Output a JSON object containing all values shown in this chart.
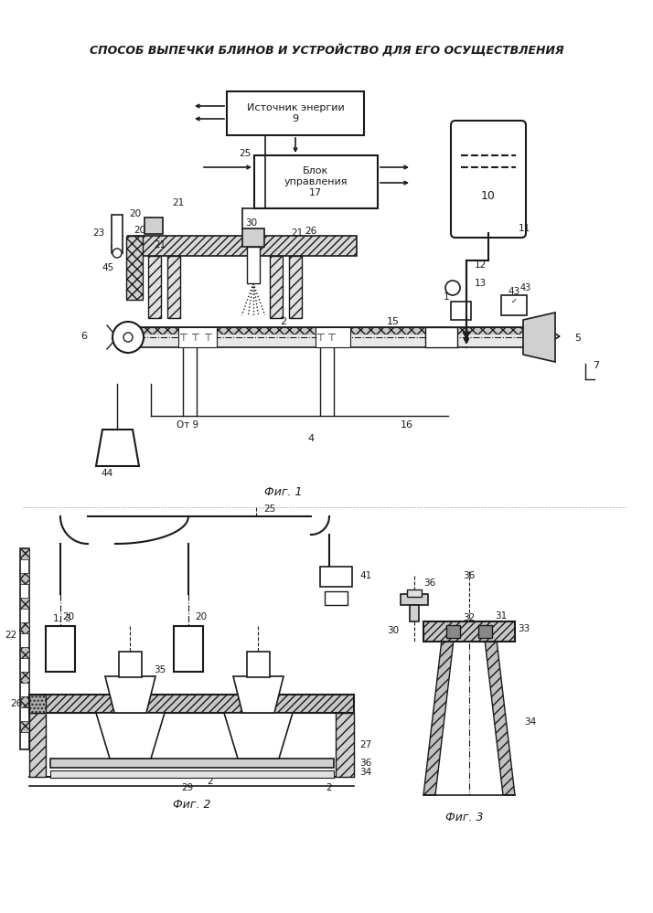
{
  "title": "СПОСОБ ВЫПЕЧКИ БЛИНОВ И УСТРОЙСТВО ДЛЯ ЕГО ОСУЩЕСТВЛЕНИЯ",
  "fig1_caption": "Фиг. 1",
  "fig2_caption": "Фиг. 2",
  "fig3_caption": "Фиг. 3",
  "bg_color": "#ffffff",
  "lc": "#1a1a1a"
}
